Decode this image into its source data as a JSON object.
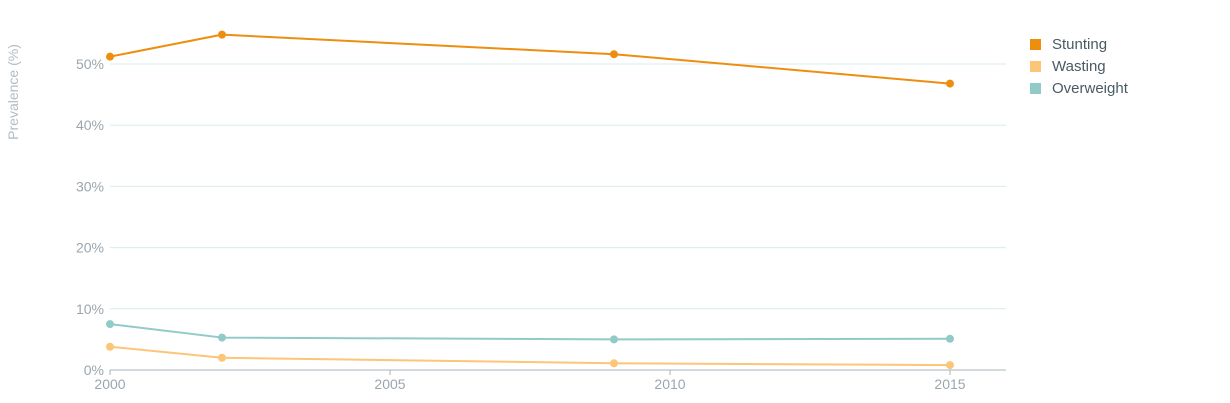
{
  "chart_data": {
    "type": "line",
    "title": "",
    "xlabel": "",
    "ylabel": "Prevalence (%)",
    "xlim": [
      2000,
      2016
    ],
    "ylim": [
      0,
      55
    ],
    "x_ticks": [
      2000,
      2005,
      2010,
      2015
    ],
    "y_ticks": [
      0,
      10,
      20,
      30,
      40,
      50
    ],
    "y_tick_labels": [
      "0%",
      "10%",
      "20%",
      "30%",
      "40%",
      "50%"
    ],
    "grid": true,
    "legend_position": "top-right",
    "series": [
      {
        "name": "Stunting",
        "color": "#ee8e0e",
        "points": [
          [
            2000,
            51.2
          ],
          [
            2002,
            54.8
          ],
          [
            2009,
            51.6
          ],
          [
            2015,
            46.8
          ]
        ]
      },
      {
        "name": "Wasting",
        "color": "#fcc577",
        "points": [
          [
            2000,
            3.8
          ],
          [
            2002,
            2.0
          ],
          [
            2009,
            1.1
          ],
          [
            2015,
            0.8
          ]
        ]
      },
      {
        "name": "Overweight",
        "color": "#91cac7",
        "points": [
          [
            2000,
            7.5
          ],
          [
            2002,
            5.3
          ],
          [
            2009,
            5.0
          ],
          [
            2015,
            5.1
          ]
        ]
      }
    ]
  }
}
